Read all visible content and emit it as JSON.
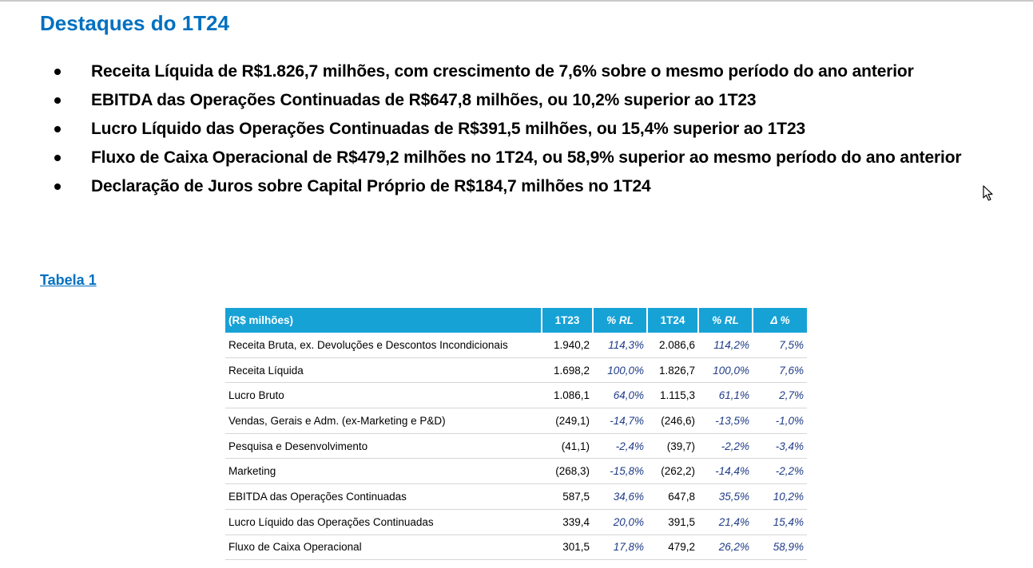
{
  "title": "Destaques do 1T24",
  "bullets": [
    "Receita Líquida de R$1.826,7 milhões, com crescimento de 7,6% sobre o mesmo período do ano anterior",
    "EBITDA das Operações Continuadas de R$647,8 milhões, ou 10,2% superior ao 1T23",
    "Lucro Líquido das Operações Continuadas de R$391,5 milhões, ou 15,4% superior ao 1T23",
    "Fluxo de Caixa Operacional de R$479,2 milhões no 1T24, ou 58,9% superior ao mesmo período do ano anterior",
    "Declaração de Juros sobre Capital Próprio de R$184,7 milhões no 1T24"
  ],
  "table_label": "Tabela 1",
  "table": {
    "headers": [
      "(R$ milhões)",
      "1T23",
      "% RL",
      "1T24",
      "% RL",
      "Δ %"
    ],
    "rows": [
      [
        "Receita Bruta, ex. Devoluções e Descontos Incondicionais",
        "1.940,2",
        "114,3%",
        "2.086,6",
        "114,2%",
        "7,5%"
      ],
      [
        "Receita Líquida",
        "1.698,2",
        "100,0%",
        "1.826,7",
        "100,0%",
        "7,6%"
      ],
      [
        "Lucro Bruto",
        "1.086,1",
        "64,0%",
        "1.115,3",
        "61,1%",
        "2,7%"
      ],
      [
        "Vendas, Gerais e Adm. (ex-Marketing e P&D)",
        "(249,1)",
        "-14,7%",
        "(246,6)",
        "-13,5%",
        "-1,0%"
      ],
      [
        "Pesquisa e Desenvolvimento",
        "(41,1)",
        "-2,4%",
        "(39,7)",
        "-2,2%",
        "-3,4%"
      ],
      [
        "Marketing",
        "(268,3)",
        "-15,8%",
        "(262,2)",
        "-14,4%",
        "-2,2%"
      ],
      [
        "EBITDA das Operações Continuadas",
        "587,5",
        "34,6%",
        "647,8",
        "35,5%",
        "10,2%"
      ],
      [
        "Lucro Líquido das Operações Continuadas",
        "339,4",
        "20,0%",
        "391,5",
        "21,4%",
        "15,4%"
      ],
      [
        "Fluxo de Caixa Operacional",
        "301,5",
        "17,8%",
        "479,2",
        "26,2%",
        "58,9%"
      ]
    ]
  },
  "icons": {
    "cursor": "mouse-pointer-icon"
  },
  "colors": {
    "title": "#0070c0",
    "header_bg": "#17a2d6",
    "pct_text": "#1f3c88"
  }
}
